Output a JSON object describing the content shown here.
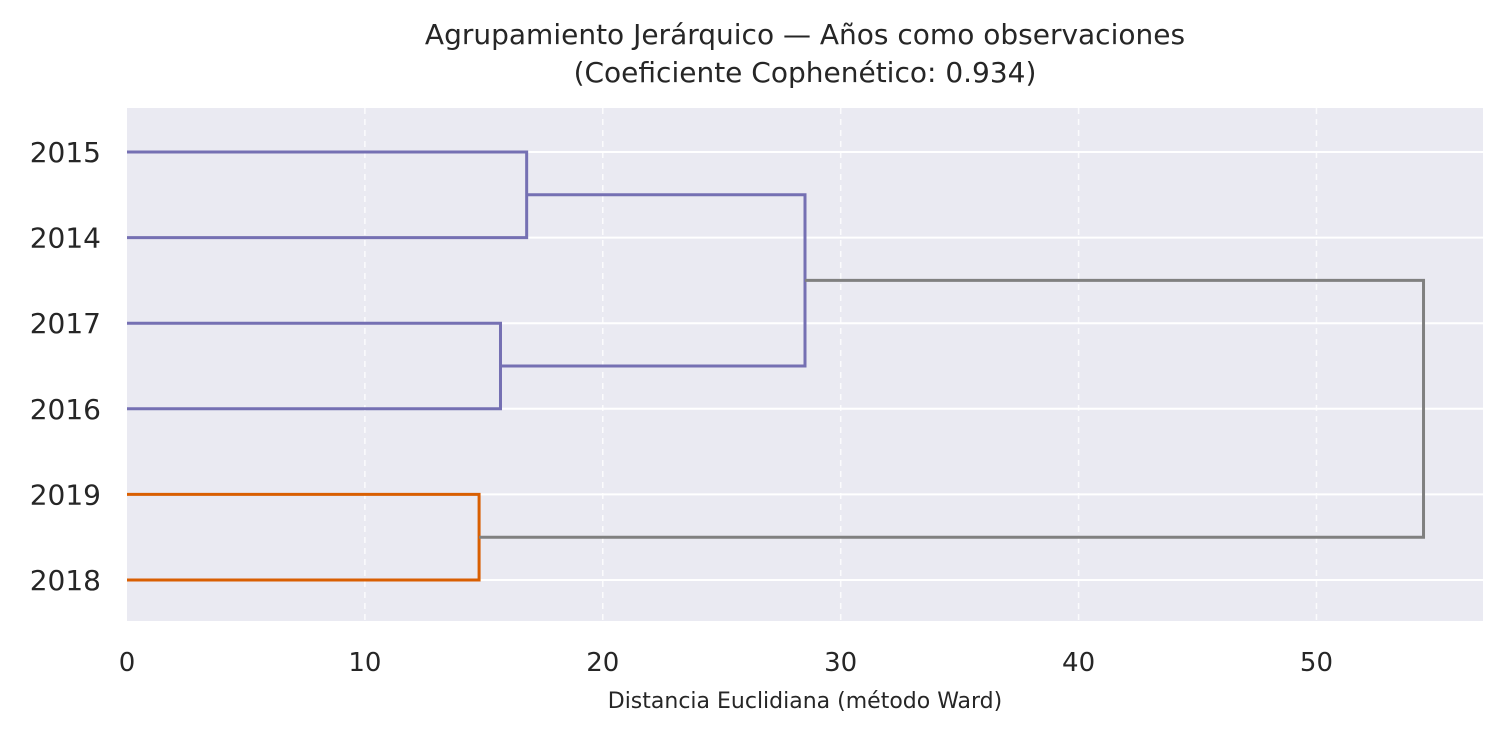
{
  "chart_data": {
    "type": "dendrogram",
    "title_line1": "Agrupamiento Jerárquico — Años como observaciones",
    "title_line2": "(Coeficiente Cophenético: 0.934)",
    "xlabel": "Distancia Euclidiana (método Ward)",
    "xlim": [
      0,
      57
    ],
    "x_ticks": [
      0,
      10,
      20,
      30,
      40,
      50
    ],
    "x_tick_labels": [
      "0",
      "10",
      "20",
      "30",
      "40",
      "50"
    ],
    "orientation": "left",
    "grid": true,
    "leaves": [
      "2015",
      "2014",
      "2017",
      "2016",
      "2019",
      "2018"
    ],
    "merges": [
      {
        "id": "c1",
        "children": [
          "2015",
          "2014"
        ],
        "height": 16.8,
        "color": "#7570b3"
      },
      {
        "id": "c2",
        "children": [
          "2017",
          "2016"
        ],
        "height": 15.7,
        "color": "#7570b3"
      },
      {
        "id": "c3",
        "children": [
          "c1",
          "c2"
        ],
        "height": 28.5,
        "color": "#7570b3"
      },
      {
        "id": "c4",
        "children": [
          "2019",
          "2018"
        ],
        "height": 14.8,
        "color": "#d95f02"
      },
      {
        "id": "c5",
        "children": [
          "c3",
          "c4"
        ],
        "height": 54.5,
        "color": "#808080"
      }
    ],
    "colors": {
      "cluster_a": "#7570b3",
      "cluster_b": "#d95f02",
      "above_threshold": "#808080",
      "plot_background": "#eaeaf2",
      "grid": "#ffffff"
    }
  }
}
